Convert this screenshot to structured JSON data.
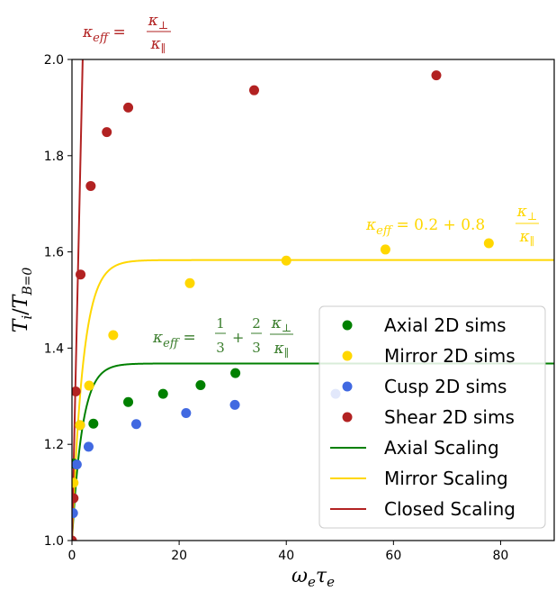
{
  "chart_data": {
    "type": "scatter",
    "xlabel": "ω_e τ_e",
    "ylabel": "T_i / T_{B=0}",
    "xlim": [
      0,
      90
    ],
    "ylim": [
      1.0,
      2.0
    ],
    "x_ticks": [
      "0",
      "20",
      "40",
      "60",
      "80"
    ],
    "y_ticks": [
      "1.0",
      "1.2",
      "1.4",
      "1.6",
      "1.8",
      "2.0"
    ],
    "grid": false,
    "legend_position": "lower-right",
    "series": [
      {
        "name": "Axial 2D sims",
        "kind": "scatter",
        "color": "#008000",
        "x": [
          0.3,
          1.5,
          4,
          10.5,
          17,
          24,
          30.5
        ],
        "y": [
          1.16,
          1.24,
          1.243,
          1.288,
          1.305,
          1.323,
          1.348
        ]
      },
      {
        "name": "Mirror 2D sims",
        "kind": "scatter",
        "color": "#FFD700",
        "x": [
          0.3,
          1.5,
          3.2,
          7.7,
          22,
          40,
          58.5,
          77.8
        ],
        "y": [
          1.12,
          1.24,
          1.322,
          1.427,
          1.535,
          1.582,
          1.605,
          1.618
        ]
      },
      {
        "name": "Cusp 2D sims",
        "kind": "scatter",
        "color": "#4169E1",
        "x": [
          0.2,
          0.9,
          3.1,
          12,
          21.3,
          30.4,
          49.2
        ],
        "y": [
          1.057,
          1.158,
          1.195,
          1.242,
          1.265,
          1.282,
          1.305
        ]
      },
      {
        "name": "Shear 2D sims",
        "kind": "scatter",
        "color": "#B22222",
        "x": [
          0,
          0.3,
          0.7,
          1.6,
          3.5,
          6.5,
          10.5,
          34,
          68
        ],
        "y": [
          1.0,
          1.088,
          1.31,
          1.553,
          1.737,
          1.849,
          1.9,
          1.936,
          1.967
        ]
      },
      {
        "name": "Axial Scaling",
        "kind": "line",
        "color": "#008000",
        "model": "axial"
      },
      {
        "name": "Mirror Scaling",
        "kind": "line",
        "color": "#FFD700",
        "model": "mirror"
      },
      {
        "name": "Closed Scaling",
        "kind": "line",
        "color": "#B22222",
        "model": "closed"
      }
    ],
    "annotations": [
      {
        "text": "κ_eff = κ⊥ / κ∥",
        "color": "#B22222"
      },
      {
        "text": "κ_eff = 0.2 + 0.8 κ⊥ / κ∥",
        "color": "#FFD700"
      },
      {
        "text": "κ_eff = 1/3 + 2/3 κ⊥ / κ∥",
        "color": "#3a7d2c"
      }
    ]
  }
}
